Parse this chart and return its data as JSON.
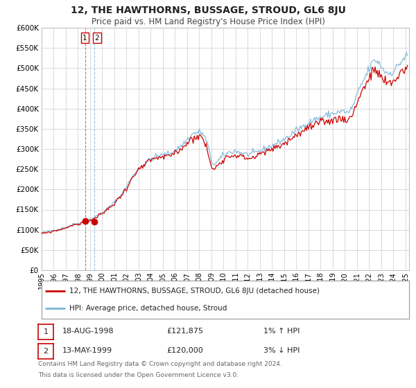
{
  "title": "12, THE HAWTHORNS, BUSSAGE, STROUD, GL6 8JU",
  "subtitle": "Price paid vs. HM Land Registry's House Price Index (HPI)",
  "legend_line1": "12, THE HAWTHORNS, BUSSAGE, STROUD, GL6 8JU (detached house)",
  "legend_line2": "HPI: Average price, detached house, Stroud",
  "transaction1_date": "18-AUG-1998",
  "transaction1_price": "£121,875",
  "transaction1_hpi": "1% ↑ HPI",
  "transaction2_date": "13-MAY-1999",
  "transaction2_price": "£120,000",
  "transaction2_hpi": "3% ↓ HPI",
  "footnote1": "Contains HM Land Registry data © Crown copyright and database right 2024.",
  "footnote2": "This data is licensed under the Open Government Licence v3.0.",
  "hpi_color": "#7ab4d8",
  "price_color": "#cc0000",
  "point1_date_num": 1998.62,
  "point2_date_num": 1999.37,
  "point1_price": 121875,
  "point2_price": 120000,
  "ylim_min": 0,
  "ylim_max": 600000,
  "xlim_min": 1995.0,
  "xlim_max": 2025.3,
  "background_color": "#ffffff",
  "grid_color": "#cccccc",
  "vline_color1": "#cc0000",
  "vline_color2": "#aaccee"
}
